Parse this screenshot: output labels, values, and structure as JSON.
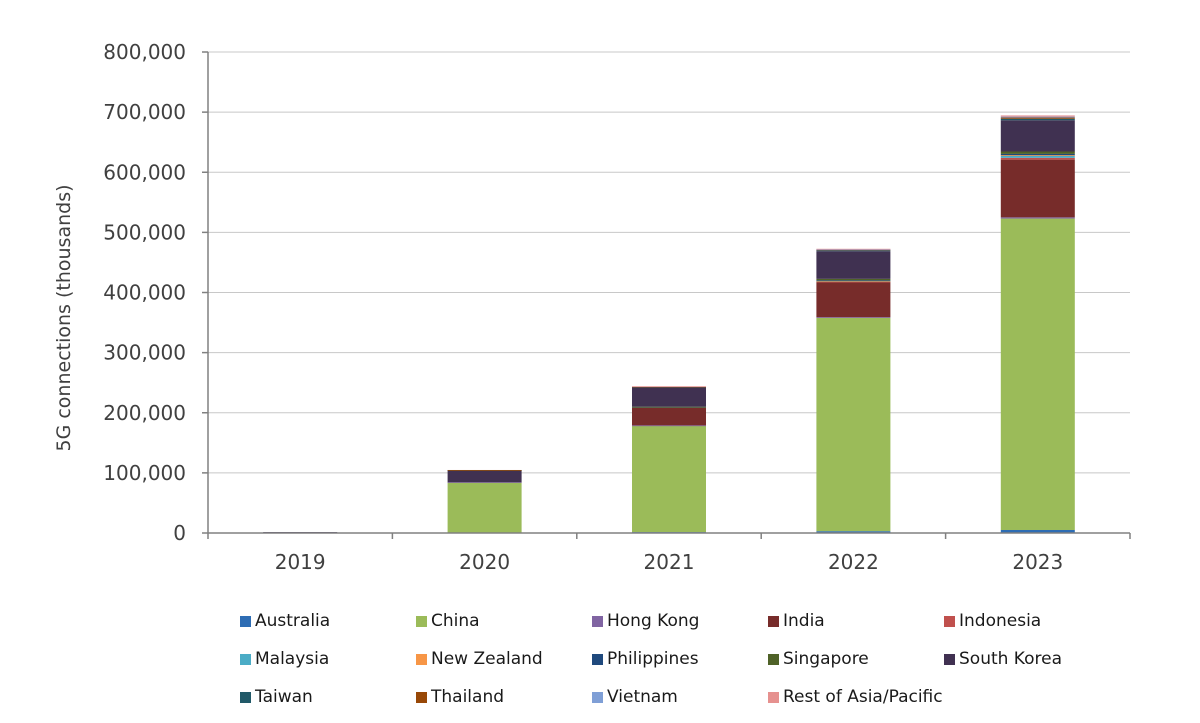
{
  "chart_data": {
    "type": "bar",
    "stacked": true,
    "title": "",
    "xlabel": "",
    "ylabel": "5G connections (thousands)",
    "ylim": [
      0,
      800000
    ],
    "yticks": [
      "0",
      "100,000",
      "200,000",
      "300,000",
      "400,000",
      "500,000",
      "600,000",
      "700,000",
      "800,000"
    ],
    "grid": true,
    "legend_position": "bottom",
    "categories": [
      "2019",
      "2020",
      "2021",
      "2022",
      "2023"
    ],
    "series": [
      {
        "name": "Australia",
        "color": "#2E6DB4",
        "values": [
          1000,
          500,
          1500,
          3000,
          5000
        ]
      },
      {
        "name": "China",
        "color": "#9BBB59",
        "values": [
          0,
          84000,
          177000,
          355000,
          518000
        ]
      },
      {
        "name": "Hong Kong",
        "color": "#8064A2",
        "values": [
          0,
          100,
          500,
          1000,
          2000
        ]
      },
      {
        "name": "India",
        "color": "#772C2A",
        "values": [
          0,
          0,
          30000,
          58000,
          96000
        ]
      },
      {
        "name": "Indonesia",
        "color": "#C0504D",
        "values": [
          0,
          0,
          200,
          1000,
          3000
        ]
      },
      {
        "name": "Malaysia",
        "color": "#4BACC6",
        "values": [
          0,
          0,
          100,
          1000,
          4000
        ]
      },
      {
        "name": "New Zealand",
        "color": "#F79646",
        "values": [
          0,
          0,
          50,
          200,
          500
        ]
      },
      {
        "name": "Philippines",
        "color": "#1F497D",
        "values": [
          0,
          0,
          200,
          1000,
          2000
        ]
      },
      {
        "name": "Singapore",
        "color": "#4F6228",
        "values": [
          0,
          0,
          500,
          2500,
          4000
        ]
      },
      {
        "name": "South Korea",
        "color": "#403151",
        "values": [
          500,
          20000,
          32000,
          46000,
          52000
        ]
      },
      {
        "name": "Taiwan",
        "color": "#215968",
        "values": [
          0,
          100,
          1000,
          1500,
          2500
        ]
      },
      {
        "name": "Thailand",
        "color": "#984807",
        "values": [
          0,
          100,
          500,
          1000,
          2000
        ]
      },
      {
        "name": "Vietnam",
        "color": "#7F9FD6",
        "values": [
          0,
          0,
          0,
          500,
          1500
        ]
      },
      {
        "name": "Rest of Asia/Pacific",
        "color": "#E6918F",
        "values": [
          0,
          0,
          500,
          1000,
          2000
        ]
      }
    ]
  }
}
